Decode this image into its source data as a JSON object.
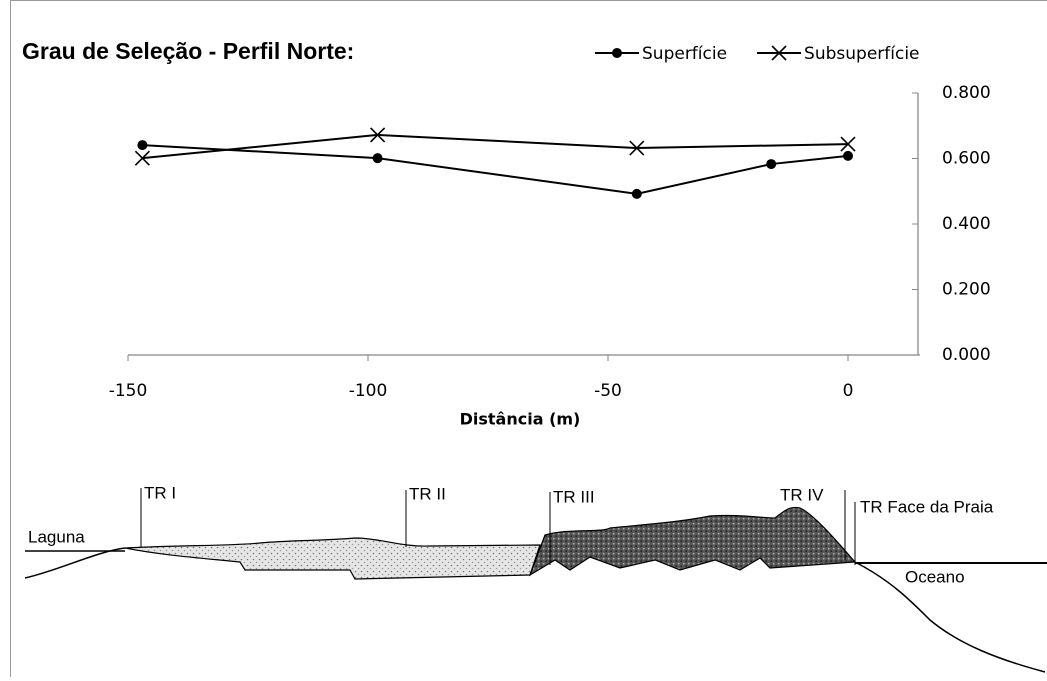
{
  "chart_data": {
    "type": "line",
    "title": "Grau de Seleção - Perfil Norte:",
    "x_label": "Distância (m)",
    "series": [
      {
        "name": "Superfície",
        "color": "#000000",
        "marker": "circle",
        "x": [
          -147,
          -98,
          -44,
          -16,
          0
        ],
        "values": [
          0.641,
          0.601,
          0.492,
          0.583,
          0.608
        ]
      },
      {
        "name": "Subsuperfície",
        "color": "#000000",
        "marker": "x",
        "x": [
          -147,
          -98,
          -44,
          0
        ],
        "values": [
          0.601,
          0.672,
          0.632,
          0.644
        ]
      }
    ],
    "xlim": [
      -150,
      15
    ],
    "xticks": [
      -150,
      -100,
      -50,
      0
    ],
    "ylim": [
      0,
      0.8
    ],
    "yticks": [
      {
        "value": 0,
        "label": "0.000"
      },
      {
        "value": 0.2,
        "label": "0.200"
      },
      {
        "value": 0.4,
        "label": "0.400"
      },
      {
        "value": 0.6,
        "label": "0.600"
      },
      {
        "value": 0.8,
        "label": "0.800"
      }
    ],
    "y_axis_side": "right",
    "legend": "top-right",
    "grid": false
  },
  "diagram": {
    "labels": [
      "Laguna",
      "TR I",
      "TR II",
      "TR III",
      "TR IV",
      "TR Face da Praia",
      "Oceano"
    ]
  }
}
